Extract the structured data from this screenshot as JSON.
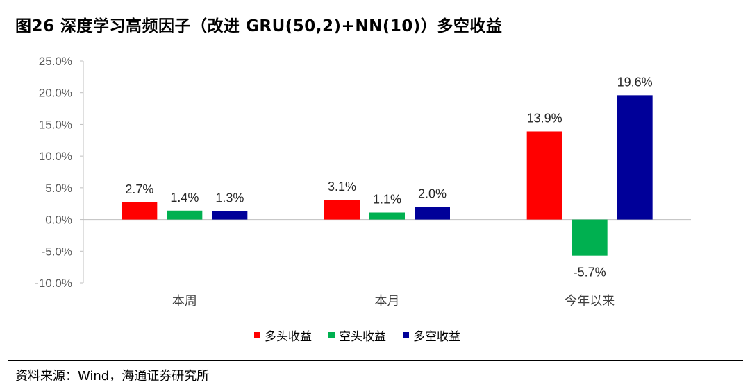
{
  "header": {
    "title": "图26 深度学习高频因子（改进 GRU(50,2)+NN(10)）多空收益"
  },
  "source": {
    "text": "资料来源：Wind，海通证券研究所"
  },
  "chart_data": {
    "type": "bar",
    "categories": [
      "本周",
      "本月",
      "今年以来"
    ],
    "series": [
      {
        "name": "多头收益",
        "color": "#FF0000",
        "values": [
          2.7,
          3.1,
          13.9
        ],
        "labels": [
          "2.7%",
          "3.1%",
          "13.9%"
        ]
      },
      {
        "name": "空头收益",
        "color": "#00B050",
        "values": [
          1.4,
          1.1,
          -5.7
        ],
        "labels": [
          "1.4%",
          "1.1%",
          "-5.7%"
        ]
      },
      {
        "name": "多空收益",
        "color": "#000099",
        "values": [
          1.3,
          2.0,
          19.6
        ],
        "labels": [
          "1.3%",
          "2.0%",
          "19.6%"
        ]
      }
    ],
    "ylim": [
      -10,
      25
    ],
    "yticks": [
      25,
      20,
      15,
      10,
      5,
      0,
      -5,
      -10
    ],
    "ytick_labels": [
      "25.0%",
      "20.0%",
      "15.0%",
      "10.0%",
      "5.0%",
      "0.0%",
      "-5.0%",
      "-10.0%"
    ],
    "grid": false,
    "legend_position": "bottom"
  }
}
